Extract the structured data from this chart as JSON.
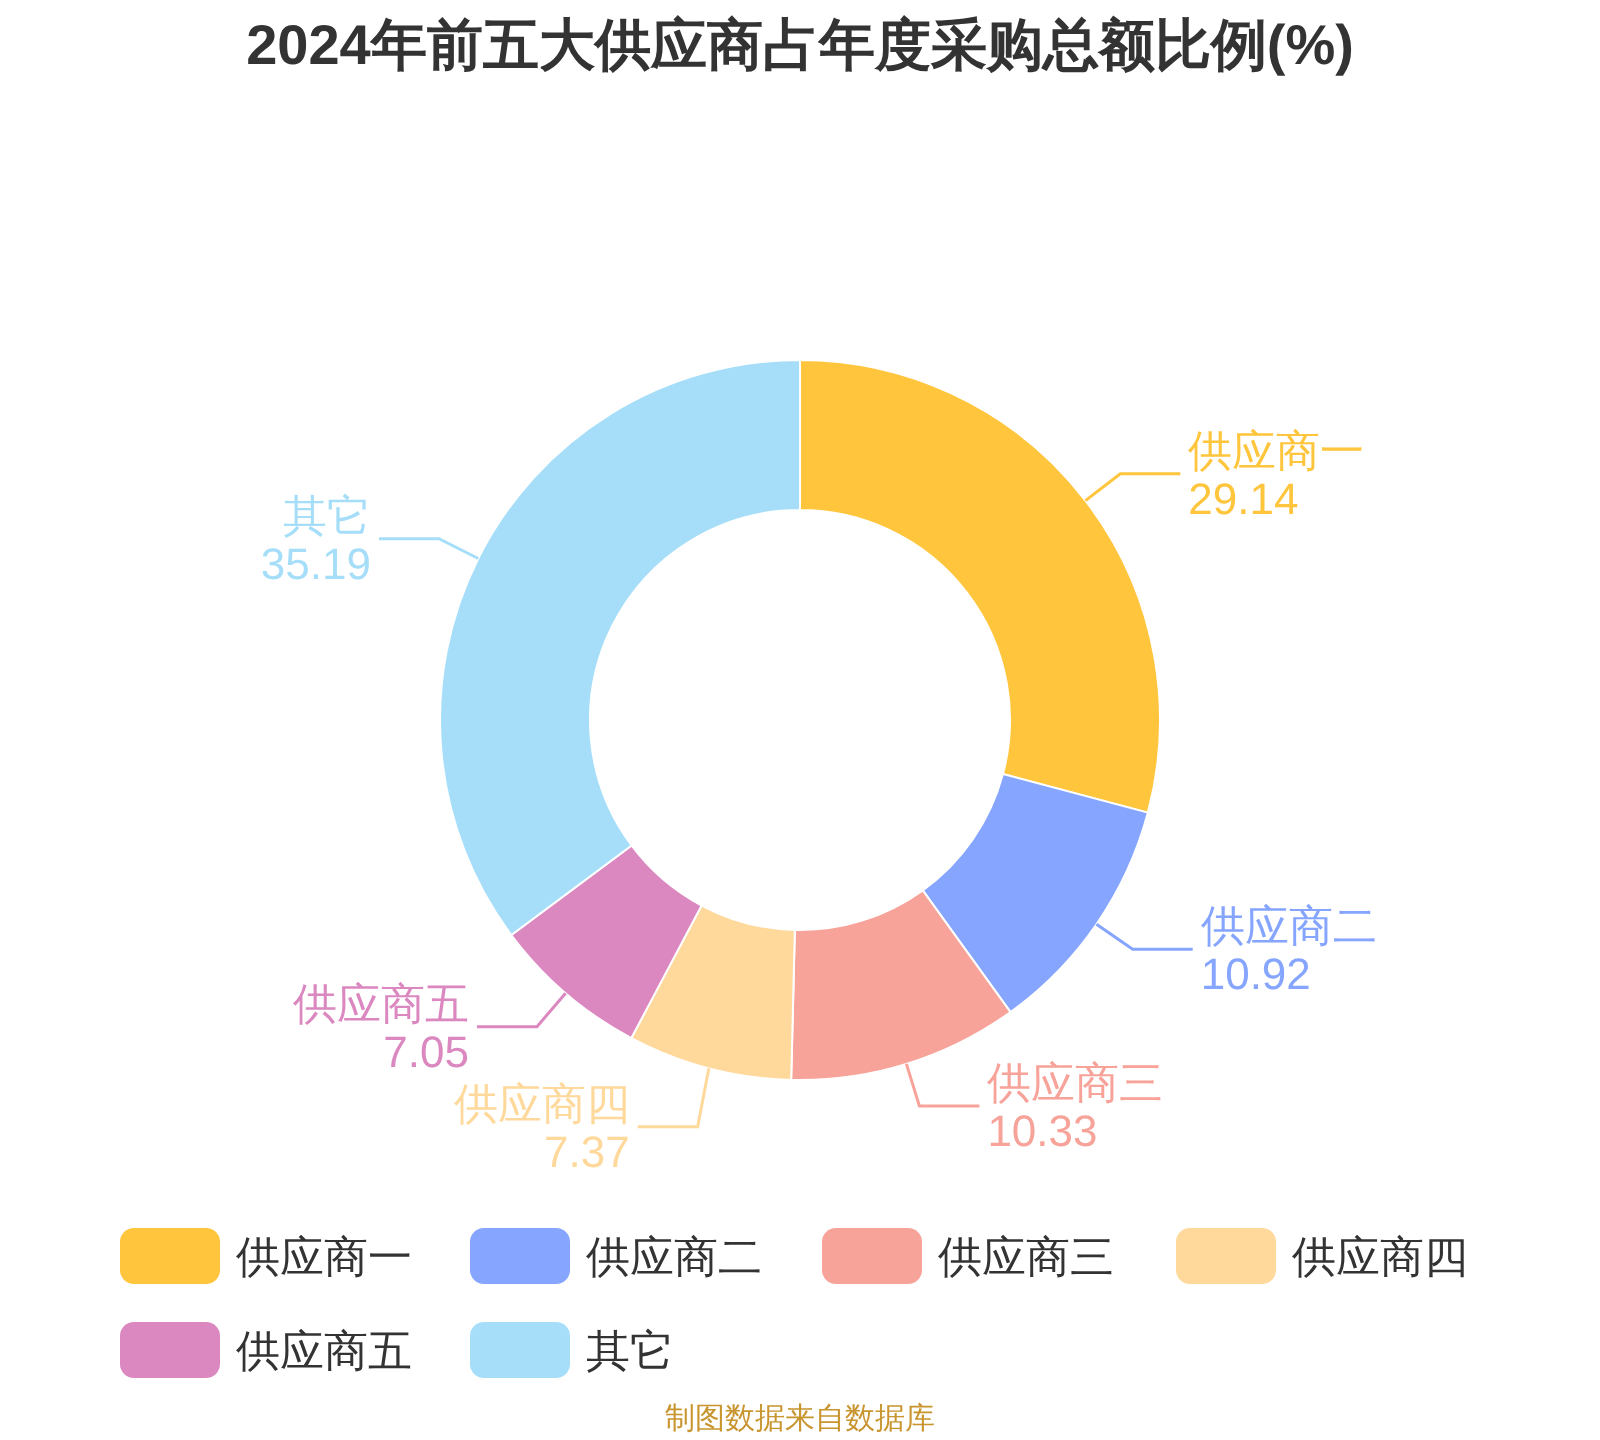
{
  "chart_data": {
    "type": "donut",
    "title": "2024年前五大供应商占年度采购总额比例(%)",
    "categories": [
      "供应商一",
      "供应商二",
      "供应商三",
      "供应商四",
      "供应商五",
      "其它"
    ],
    "values": [
      29.14,
      10.92,
      10.33,
      7.37,
      7.05,
      35.19
    ],
    "colors": [
      "#ffc53d",
      "#85a5ff",
      "#f7a399",
      "#ffd99b",
      "#dc88c0",
      "#a6def9"
    ],
    "data_labels": true,
    "legend": "bottom",
    "annotations": [
      "制图数据来自数据库"
    ]
  }
}
